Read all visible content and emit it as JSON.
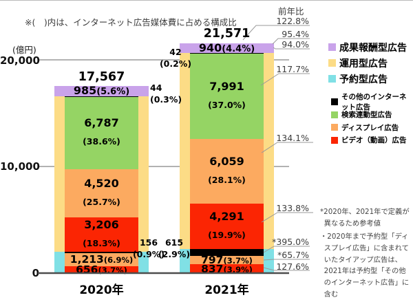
{
  "colors": {
    "performance": "#c9a3ea",
    "managed": "#fcdc86",
    "reserved": "#80e0e5",
    "other": "#000000",
    "search": "#95d464",
    "display": "#fcaa60",
    "video": "#fb2503"
  },
  "chart_data": {
    "type": "bar",
    "stacked": true,
    "note": "※(　)内は、インターネット広告媒体費に占める構成比",
    "y_axis": {
      "label": "(億円)",
      "range": [
        0,
        20000
      ],
      "ticks": [
        "20,000",
        "10,000",
        "0"
      ]
    },
    "categories": [
      "2020年",
      "2021年"
    ],
    "outer_structure": {
      "top_key": "performance",
      "middle": {
        "key": "managed",
        "label": "運用型広告",
        "span": [
          1,
          4
        ]
      },
      "bottom": {
        "key": "reserved",
        "label": "予約型広告",
        "span": [
          5,
          7
        ]
      }
    },
    "bars": [
      {
        "category": "2020年",
        "total": 17567,
        "total_label": "17,567",
        "segments": [
          {
            "name": "成果報酬型広告",
            "key": "performance",
            "value": 985,
            "label": "985",
            "pct": "(5.6%)",
            "label_mode": "inline"
          },
          {
            "name": "その他のインターネット広告（運用型）",
            "key": "other",
            "value": 44,
            "label": "44",
            "pct": "(0.3%)",
            "label_mode": "outside"
          },
          {
            "name": "検索連動型広告",
            "key": "search",
            "value": 6787,
            "label": "6,787",
            "pct": "(38.6%)",
            "label_mode": "block"
          },
          {
            "name": "ディスプレイ広告（運用型）",
            "key": "display",
            "value": 4520,
            "label": "4,520",
            "pct": "(25.7%)",
            "label_mode": "block"
          },
          {
            "name": "ビデオ（動画）広告（運用型）",
            "key": "video",
            "value": 3206,
            "label": "3,206",
            "pct": "(18.3%)",
            "label_mode": "block"
          },
          {
            "name": "その他のインターネット広告（予約型）",
            "key": "other",
            "value": 156,
            "label": "156",
            "pct": "(0.9%)",
            "label_mode": "outside"
          },
          {
            "name": "ディスプレイ広告（予約型）",
            "key": "display",
            "value": 1213,
            "label": "1,213",
            "pct": "(6.9%)",
            "label_mode": "inline-small"
          },
          {
            "name": "ビデオ（動画）広告（予約型）",
            "key": "video",
            "value": 656,
            "label": "656",
            "pct": "(3.7%)",
            "label_mode": "inline-small"
          }
        ]
      },
      {
        "category": "2021年",
        "total": 21571,
        "total_label": "21,571",
        "segments": [
          {
            "name": "成果報酬型広告",
            "key": "performance",
            "value": 940,
            "label": "940",
            "pct": "(4.4%)",
            "label_mode": "inline"
          },
          {
            "name": "その他のインターネット広告（運用型）",
            "key": "other",
            "value": 42,
            "label": "42",
            "pct": "(0.2%)",
            "label_mode": "outside"
          },
          {
            "name": "検索連動型広告",
            "key": "search",
            "value": 7991,
            "label": "7,991",
            "pct": "(37.0%)",
            "label_mode": "block"
          },
          {
            "name": "ディスプレイ広告（運用型）",
            "key": "display",
            "value": 6059,
            "label": "6,059",
            "pct": "(28.1%)",
            "label_mode": "block"
          },
          {
            "name": "ビデオ（動画）広告（運用型）",
            "key": "video",
            "value": 4291,
            "label": "4,291",
            "pct": "(19.9%)",
            "label_mode": "block"
          },
          {
            "name": "その他のインターネット広告（予約型）",
            "key": "other",
            "value": 615,
            "label": "615",
            "pct": "(2.9%)",
            "label_mode": "outside"
          },
          {
            "name": "ディスプレイ広告（予約型）",
            "key": "display",
            "value": 797,
            "label": "797",
            "pct": "(3.7%)",
            "label_mode": "inline-small"
          },
          {
            "name": "ビデオ（動画）広告（予約型）",
            "key": "video",
            "value": 837,
            "label": "837",
            "pct": "(3.9%)",
            "label_mode": "inline-small"
          }
        ]
      }
    ],
    "yoy": {
      "header": "前年比",
      "items": [
        "122.8%",
        "95.4%",
        "94.0%",
        "117.7%",
        "134.1%",
        "133.8%",
        "*395.0%",
        "*65.7%",
        "127.6%"
      ]
    }
  },
  "legend": {
    "group1": [
      {
        "label": "成果報酬型広告",
        "color_key": "performance"
      },
      {
        "label": "運用型広告",
        "color_key": "managed"
      },
      {
        "label": "予約型広告",
        "color_key": "reserved"
      }
    ],
    "group2": [
      {
        "label": "その他のインターネット広告",
        "color_key": "other"
      },
      {
        "label": "検索連動型広告",
        "color_key": "search"
      },
      {
        "label": "ディスプレイ広告",
        "color_key": "display"
      },
      {
        "label": "ビデオ（動画）広告",
        "color_key": "video"
      }
    ]
  },
  "notes": {
    "lines": [
      "*2020年、2021年で定義が異なるため参考値",
      "・2020年まで予約型「ディスプレイ広告」に含まれていたタイアップ広告は、2021年は予約型「その他のインターネット広告」に含む"
    ]
  }
}
